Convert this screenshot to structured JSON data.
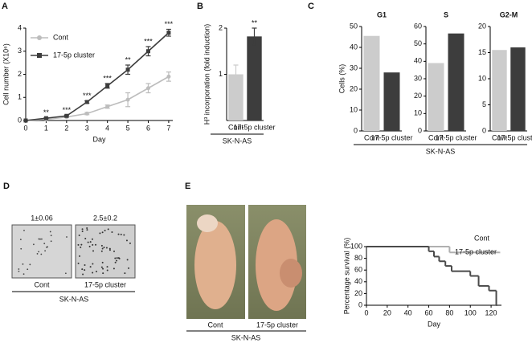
{
  "chart_data": [
    {
      "type": "line",
      "panel": "A",
      "ylabel": "Cell number (X10⁶)",
      "xlabel": "Day",
      "x": [
        0,
        1,
        2,
        3,
        4,
        5,
        6,
        7
      ],
      "xlim": [
        0,
        7.2
      ],
      "xticks": [
        0,
        1,
        2,
        3,
        4,
        5,
        6,
        7
      ],
      "ylim": [
        0,
        4
      ],
      "yticks": [
        0,
        1,
        2,
        3,
        4
      ],
      "series": [
        {
          "name": "Cont",
          "color": "#bdbdbd",
          "marker": "circle",
          "values": [
            0,
            0.05,
            0.15,
            0.3,
            0.6,
            0.9,
            1.4,
            1.9
          ],
          "errors": [
            0,
            0.02,
            0.03,
            0.05,
            0.07,
            0.3,
            0.2,
            0.2
          ]
        },
        {
          "name": "17-5p cluster",
          "color": "#3d3d3d",
          "marker": "square",
          "values": [
            0,
            0.1,
            0.2,
            0.8,
            1.5,
            2.2,
            3.0,
            3.8
          ],
          "errors": [
            0,
            0.02,
            0.03,
            0.05,
            0.1,
            0.2,
            0.2,
            0.15
          ]
        }
      ],
      "annotations": [
        null,
        "**",
        "***",
        "***",
        "***",
        "**",
        "***",
        "***"
      ],
      "legend": "upper-left"
    },
    {
      "type": "bar",
      "panel": "B",
      "ylabel": "H³ incorporation (fold induction)",
      "group_label": "SK-N-AS",
      "categories": [
        "Cont",
        "17-5p cluster"
      ],
      "values": [
        1,
        1.82
      ],
      "errors": [
        0.2,
        0.18
      ],
      "colors": [
        "#cccccc",
        "#3d3d3d"
      ],
      "ylim": [
        0,
        2
      ],
      "yticks": [
        1,
        2
      ],
      "annotations": [
        null,
        "**"
      ]
    },
    {
      "type": "bar",
      "panel": "C",
      "title": "G1",
      "ylabel": "Cells (%)",
      "group_label": "SK-N-AS",
      "categories": [
        "Cont",
        "17-5p cluster"
      ],
      "values": [
        45.5,
        28
      ],
      "colors": [
        "#cccccc",
        "#3d3d3d"
      ],
      "ylim": [
        0,
        50
      ],
      "yticks": [
        0,
        10,
        20,
        30,
        40,
        50
      ]
    },
    {
      "type": "bar",
      "title": "S",
      "categories": [
        "Cont",
        "17-5p cluster"
      ],
      "values": [
        39,
        56
      ],
      "colors": [
        "#cccccc",
        "#3d3d3d"
      ],
      "ylim": [
        0,
        60
      ],
      "yticks": [
        0,
        10,
        20,
        30,
        40,
        50,
        60
      ]
    },
    {
      "type": "bar",
      "title": "G2-M",
      "categories": [
        "Cont",
        "17-5p cluster"
      ],
      "values": [
        15.5,
        16
      ],
      "colors": [
        "#cccccc",
        "#3d3d3d"
      ],
      "ylim": [
        0,
        20
      ],
      "yticks": [
        0,
        5,
        10,
        15,
        20
      ]
    },
    {
      "type": "step",
      "ylabel": "Percentage survival (%)",
      "xlabel": "Day",
      "xlim": [
        0,
        130
      ],
      "xticks": [
        0,
        20,
        40,
        60,
        80,
        100,
        120
      ],
      "ylim": [
        0,
        100
      ],
      "yticks": [
        0,
        20,
        40,
        60,
        80,
        100
      ],
      "series": [
        {
          "name": "Cont",
          "color": "#b0b0b0",
          "x": [
            0,
            80,
            128
          ],
          "values": [
            100,
            90,
            90
          ]
        },
        {
          "name": "17-5p cluster",
          "color": "#4a4a4a",
          "x": [
            0,
            60,
            65,
            70,
            76,
            82,
            100,
            108,
            118,
            125
          ],
          "values": [
            100,
            92,
            83,
            75,
            67,
            58,
            50,
            33,
            25,
            0
          ]
        }
      ]
    }
  ],
  "images": {
    "D": {
      "panel": "D",
      "values": [
        "1±0.06",
        "2.5±0.2"
      ],
      "labels": [
        "Cont",
        "17-5p cluster"
      ],
      "group_label": "SK-N-AS"
    },
    "E": {
      "panel": "E",
      "labels": [
        "Cont",
        "17-5p cluster"
      ],
      "group_label": "SK-N-AS"
    }
  }
}
